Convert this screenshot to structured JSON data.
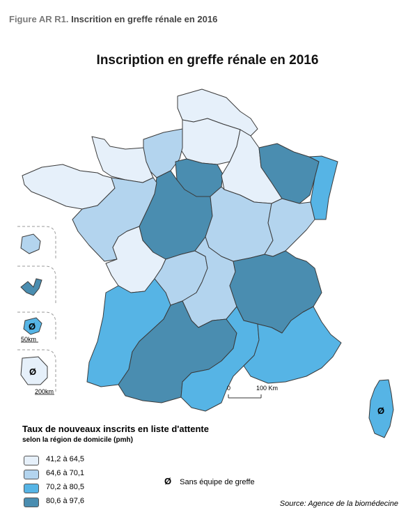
{
  "figure": {
    "number": "Figure AR R1.",
    "caption": "Inscrition en greffe rénale en 2016"
  },
  "map": {
    "title": "Inscription en greffe rénale en 2016",
    "scale": {
      "start": "0",
      "end": "100 Km"
    },
    "inset_scales": {
      "small": "50km",
      "large": "200km"
    },
    "no_team_symbol": "Ø"
  },
  "legend": {
    "title": "Taux de nouveaux inscrits en liste d'attente",
    "subtitle": "selon la région de domicile (pmh)",
    "classes": [
      {
        "label": "41,2 à 64,5",
        "color": "#e6f0fa"
      },
      {
        "label": "64,6 à 70,1",
        "color": "#b3d4ee"
      },
      {
        "label": "70,2 à 80,5",
        "color": "#56b4e5"
      },
      {
        "label": "80,6 à 97,6",
        "color": "#4a8db0"
      }
    ],
    "no_team": {
      "symbol": "Ø",
      "label": "Sans équipe de greffe"
    }
  },
  "source": "Source: Agence de la biomédecine",
  "colors": {
    "stroke": "#3a3a3a",
    "inset_border": "#9a9a9a"
  }
}
